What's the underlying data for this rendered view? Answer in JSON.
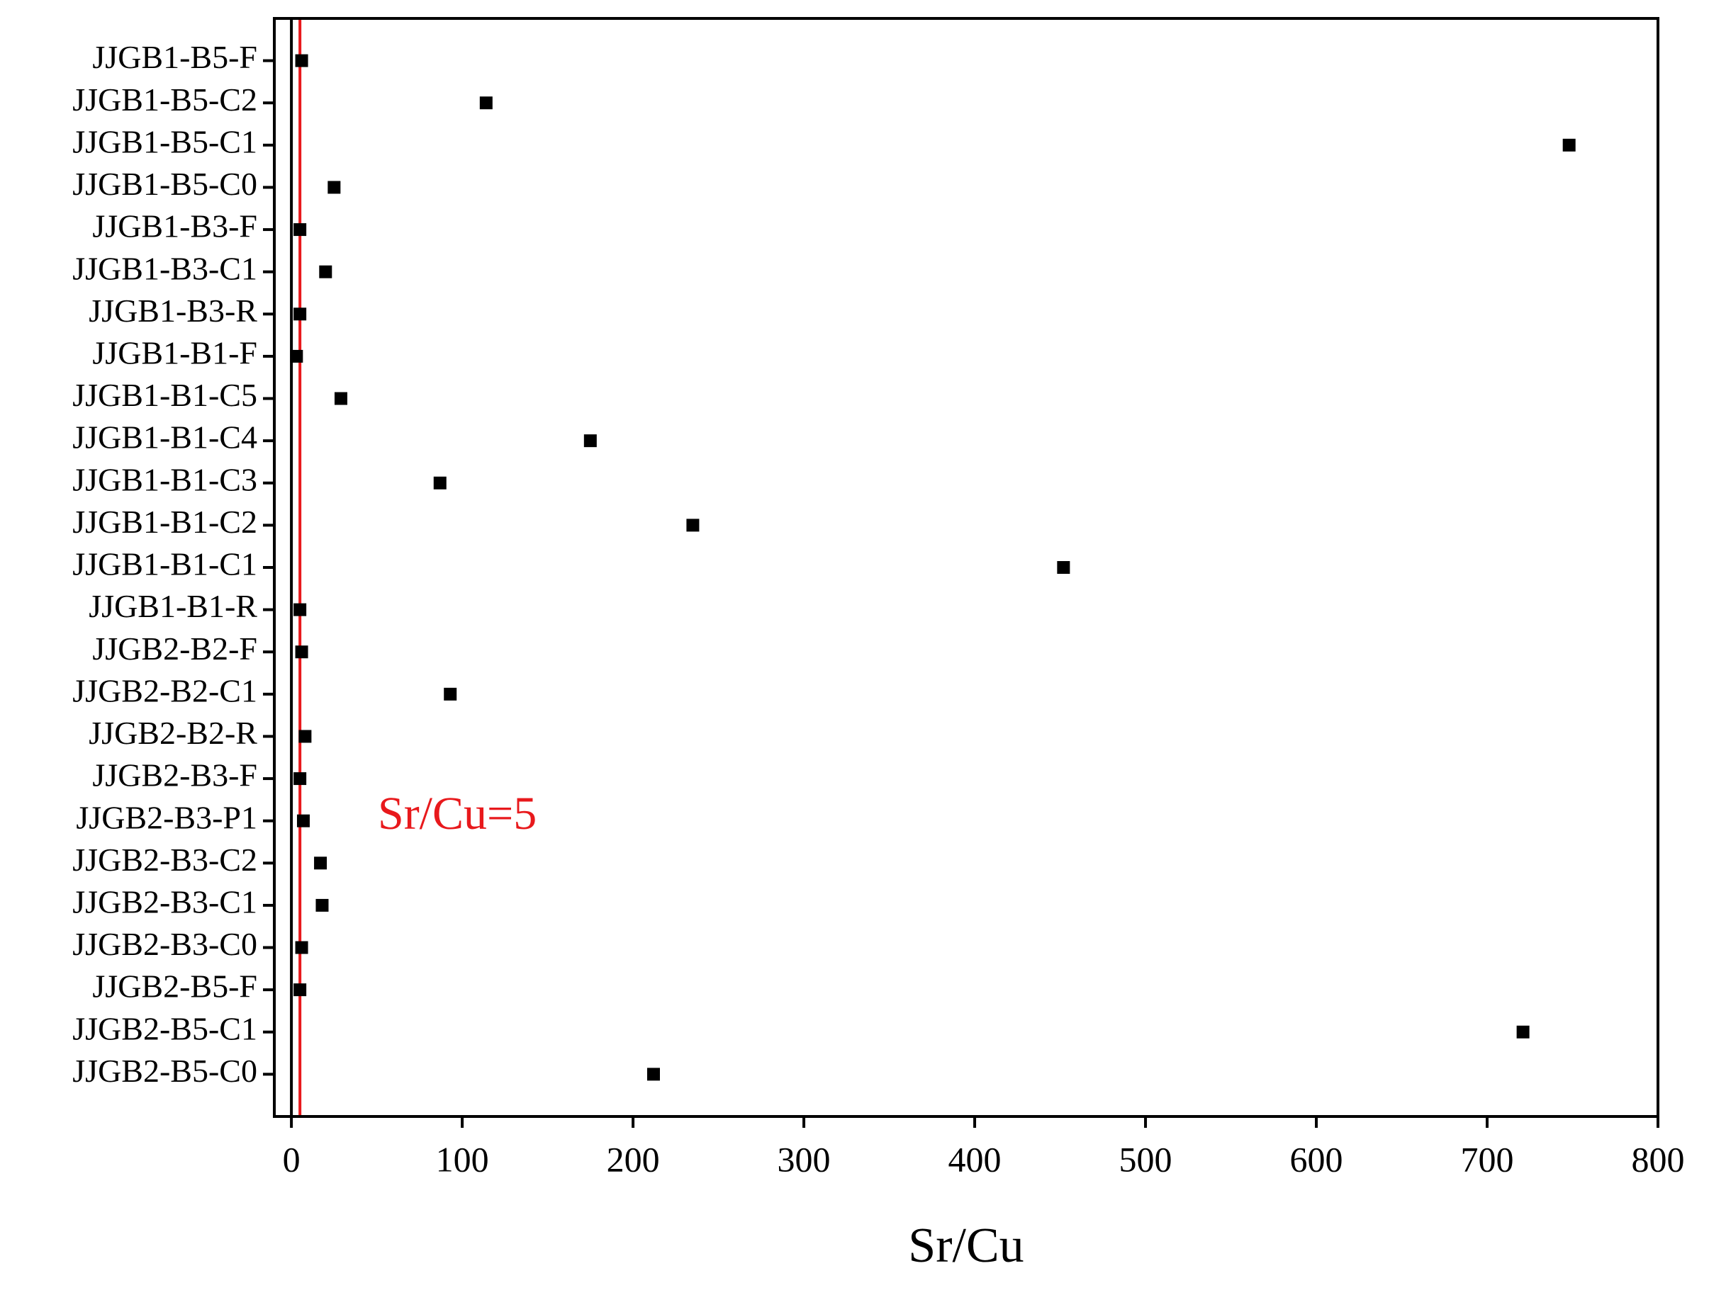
{
  "chart_data": {
    "type": "scatter",
    "xlabel": "Sr/Cu",
    "categories": [
      "JJGB1-B5-F",
      "JJGB1-B5-C2",
      "JJGB1-B5-C1",
      "JJGB1-B5-C0",
      "JJGB1-B3-F",
      "JJGB1-B3-C1",
      "JJGB1-B3-R",
      "JJGB1-B1-F",
      "JJGB1-B1-C5",
      "JJGB1-B1-C4",
      "JJGB1-B1-C3",
      "JJGB1-B1-C2",
      "JJGB1-B1-C1",
      "JJGB1-B1-R",
      "JJGB2-B2-F",
      "JJGB2-B2-C1",
      "JJGB2-B2-R",
      "JJGB2-B3-F",
      "JJGB2-B3-P1",
      "JJGB2-B3-C2",
      "JJGB2-B3-C1",
      "JJGB2-B3-C0",
      "JJGB2-B5-F",
      "JJGB2-B5-C1",
      "JJGB2-B5-C0"
    ],
    "values": [
      6,
      114,
      748,
      25,
      5,
      20,
      5,
      3,
      29,
      175,
      87,
      235,
      452,
      5,
      6,
      93,
      8,
      5,
      7,
      17,
      18,
      6,
      5,
      721,
      212
    ],
    "color": "#000000",
    "xlim": [
      -10,
      800
    ],
    "xticks": [
      0,
      100,
      200,
      300,
      400,
      500,
      600,
      700,
      800
    ],
    "reference_line": {
      "value": 5,
      "color": "#e8191c",
      "label": "Sr/Cu=5"
    }
  }
}
